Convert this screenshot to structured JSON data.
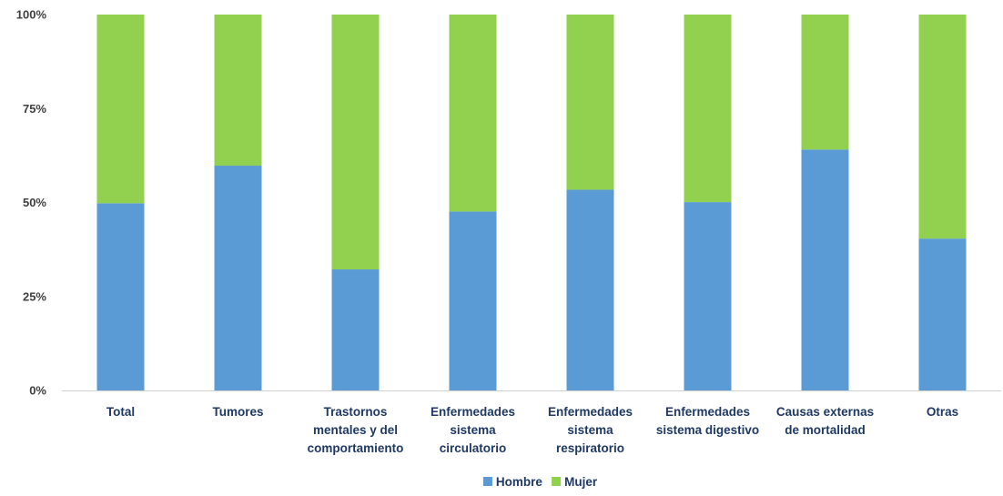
{
  "chart_data": {
    "type": "bar",
    "stacked": true,
    "percent": true,
    "categories": [
      [
        "Total"
      ],
      [
        "Tumores"
      ],
      [
        "Trastornos",
        "mentales y del",
        "comportamiento"
      ],
      [
        "Enfermedades",
        "sistema",
        "circulatorio"
      ],
      [
        "Enfermedades",
        "sistema",
        "respiratorio"
      ],
      [
        "Enfermedades",
        "sistema digestivo"
      ],
      [
        "Causas externas",
        "de mortalidad"
      ],
      [
        "Otras"
      ]
    ],
    "series": [
      {
        "name": "Hombre",
        "color": "#5b9bd5",
        "values": [
          49.8,
          59.8,
          32.2,
          47.6,
          53.4,
          50.1,
          64.1,
          40.4
        ]
      },
      {
        "name": "Mujer",
        "color": "#92d050",
        "values": [
          50.2,
          40.2,
          67.8,
          52.4,
          46.6,
          49.9,
          35.9,
          59.6
        ]
      }
    ],
    "ylim": [
      0,
      100
    ],
    "yticks": [
      "0%",
      "25%",
      "50%",
      "75%",
      "100%"
    ],
    "grid": false,
    "legend_position": "bottom"
  }
}
